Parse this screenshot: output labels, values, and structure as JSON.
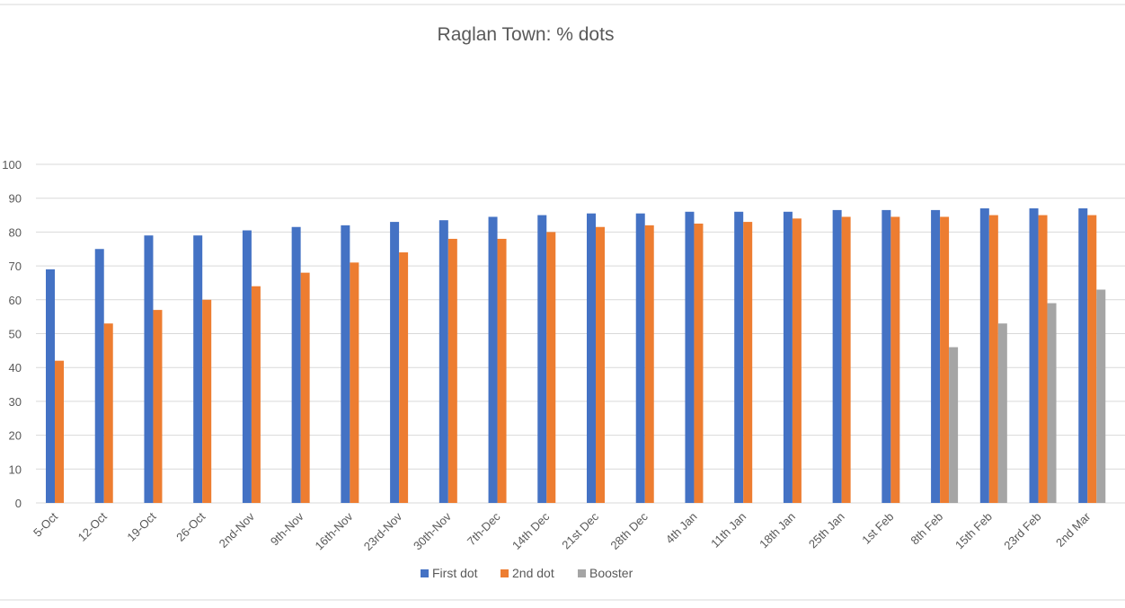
{
  "chart_data": {
    "type": "bar",
    "title": "Raglan Town: % dots",
    "xlabel": "",
    "ylabel": "",
    "ylim": [
      0,
      100
    ],
    "yticks": [
      0,
      10,
      20,
      30,
      40,
      50,
      60,
      70,
      80,
      90,
      100
    ],
    "grid": true,
    "legend_position": "bottom",
    "categories": [
      "5-Oct",
      "12-Oct",
      "19-Oct",
      "26-Oct",
      "2nd-Nov",
      "9th-Nov",
      "16th-Nov",
      "23rd-Nov",
      "30th-Nov",
      "7th-Dec",
      "14th Dec",
      "21st Dec",
      "28th Dec",
      "4th Jan",
      "11th Jan",
      "18th Jan",
      "25th Jan",
      "1st Feb",
      "8th Feb",
      "15th Feb",
      "23rd Feb",
      "2nd Mar"
    ],
    "series": [
      {
        "name": "First dot",
        "color": "#4472c4",
        "values": [
          69,
          75,
          79,
          79,
          80.5,
          81.5,
          82,
          83,
          83.5,
          84.5,
          85,
          85.5,
          85.5,
          86,
          86,
          86,
          86.5,
          86.5,
          86.5,
          87,
          87,
          87
        ]
      },
      {
        "name": "2nd dot",
        "color": "#ed7d31",
        "values": [
          42,
          53,
          57,
          60,
          64,
          68,
          71,
          74,
          78,
          78,
          80,
          81.5,
          82,
          82.5,
          83,
          84,
          84.5,
          84.5,
          84.5,
          85,
          85,
          85
        ]
      },
      {
        "name": "Booster",
        "color": "#a5a5a5",
        "values": [
          null,
          null,
          null,
          null,
          null,
          null,
          null,
          null,
          null,
          null,
          null,
          null,
          null,
          null,
          null,
          null,
          null,
          null,
          46,
          53,
          59,
          63
        ]
      }
    ]
  }
}
